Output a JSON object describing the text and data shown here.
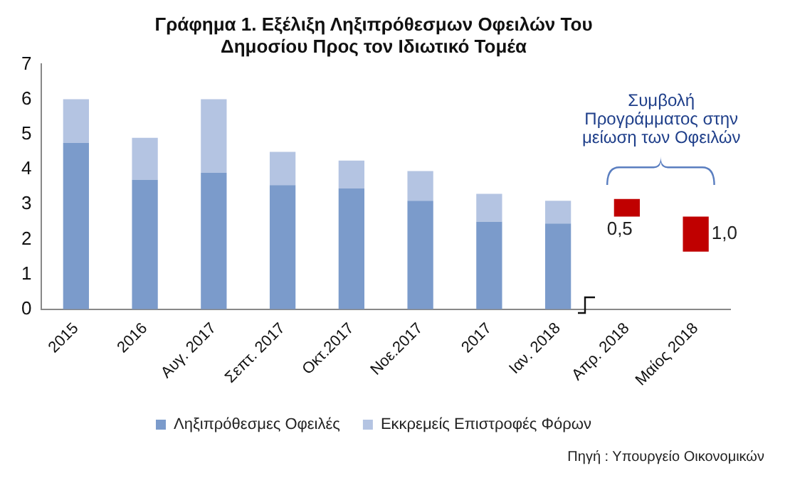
{
  "chart_data": {
    "type": "bar",
    "title": "Γράφημα 1. Εξέλιξη Ληξιπρόθεσμων Οφειλών Του\nΔημοσίου Προς τον Ιδιωτικό Τομέα",
    "categories": [
      "2015",
      "2016",
      "Αυγ. 2017",
      "Σεπτ. 2017",
      "Οκτ.2017",
      "Νοε.2017",
      "2017",
      "Ιαν. 2018",
      "Απρ. 2018",
      "Μαίος 2018"
    ],
    "stacked": true,
    "series": [
      {
        "name": "Ληξιπρόθεσμες Οφειλές",
        "color": "#7b9bcb",
        "values": [
          4.75,
          3.7,
          3.9,
          3.55,
          3.45,
          3.1,
          2.5,
          2.45,
          null,
          null
        ]
      },
      {
        "name": "Εκκρεμείς Επιστροφές Φόρων",
        "color": "#b4c4e2",
        "values": [
          1.25,
          1.2,
          2.1,
          0.95,
          0.8,
          0.85,
          0.8,
          0.65,
          null,
          null
        ]
      },
      {
        "color": "#c00000",
        "values": [
          null,
          null,
          null,
          null,
          null,
          null,
          null,
          null,
          0.5,
          1.0
        ],
        "base": [
          null,
          null,
          null,
          null,
          null,
          null,
          null,
          null,
          2.65,
          1.65
        ],
        "value_labels": [
          null,
          null,
          null,
          null,
          null,
          null,
          null,
          null,
          "0,5",
          "1,0"
        ]
      }
    ],
    "ylim": [
      0,
      7
    ],
    "yticks": [
      0,
      1,
      2,
      3,
      4,
      5,
      6,
      7
    ],
    "grid": false,
    "legend": "bottom",
    "annotations": [
      "Συμβολή\nΠρογράμματος στην\nμείωση των Οφειλών",
      "Πηγή : Υπουργείο Οικονομικών"
    ]
  }
}
